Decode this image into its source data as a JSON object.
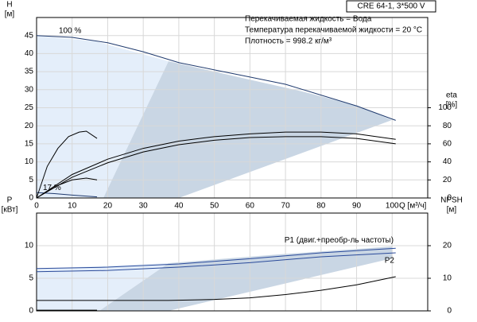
{
  "chart_data": [
    {
      "type": "line",
      "title": "CRE 64-1, 3*500 V",
      "ylabel": [
        "H",
        "[м]"
      ],
      "y2label": [
        "eta",
        "[%]"
      ],
      "xlabel": "Q [м³/ч]",
      "annotations": [
        "Перекачиваемая жидкость = Вода",
        "Температура перекачиваемой жидкости = 20 °C",
        "Плотность = 998.2 кг/м³"
      ],
      "xlim": [
        0,
        110
      ],
      "xticks": [
        0,
        10,
        20,
        30,
        40,
        50,
        60,
        70,
        80,
        90,
        100
      ],
      "ylim": [
        0,
        50
      ],
      "yticks": [
        0,
        5,
        10,
        15,
        20,
        25,
        30,
        35,
        40,
        45
      ],
      "y2lim": [
        0,
        200
      ],
      "y2ticks": [
        0,
        20,
        40,
        60,
        80,
        100
      ],
      "grid": true,
      "series": [
        {
          "name": "100 %",
          "color": "#1f3a6e",
          "x": [
            0,
            10,
            20,
            30,
            40,
            50,
            60,
            70,
            80,
            90,
            101
          ],
          "values": [
            45,
            44.5,
            43,
            40.5,
            37.5,
            35.5,
            33.5,
            31.5,
            28.5,
            25.5,
            21.5
          ]
        },
        {
          "name": "17 %",
          "color": "#1f3a6e",
          "x": [
            0,
            5,
            10,
            17
          ],
          "values": [
            1.5,
            1.2,
            0.8,
            0.3
          ]
        },
        {
          "color": "#000000",
          "axis": "y2",
          "x": [
            0,
            10,
            20,
            30,
            40,
            50,
            60,
            70,
            80,
            90,
            101
          ],
          "values": [
            0,
            26,
            43,
            55,
            63,
            68,
            71,
            73,
            73,
            71,
            65
          ]
        },
        {
          "color": "#000000",
          "axis": "y2",
          "x": [
            0,
            10,
            20,
            30,
            40,
            50,
            60,
            70,
            80,
            90,
            101
          ],
          "values": [
            0,
            23,
            39,
            51,
            59,
            64,
            67,
            68,
            68,
            66,
            60
          ]
        },
        {
          "color": "#000000",
          "axis": "y2",
          "x": [
            0,
            3,
            6,
            9,
            12,
            14,
            17
          ],
          "values": [
            0,
            35,
            55,
            68,
            73,
            74,
            66
          ]
        },
        {
          "color": "#000000",
          "axis": "y2",
          "x": [
            2,
            6,
            10,
            14,
            17
          ],
          "values": [
            5,
            14,
            20,
            22,
            20
          ]
        }
      ]
    },
    {
      "type": "line",
      "ylabel": [
        "P",
        "[кВт]"
      ],
      "y2label": [
        "NPSH",
        "[м]"
      ],
      "xlim": [
        0,
        110
      ],
      "xticks": [
        0,
        10,
        20,
        30,
        40,
        50,
        60,
        70,
        80,
        90,
        100
      ],
      "ylim": [
        0,
        15
      ],
      "yticks": [
        0,
        5,
        10
      ],
      "y2lim": [
        0,
        30
      ],
      "y2ticks": [
        0,
        10,
        20
      ],
      "grid": true,
      "series": [
        {
          "name": "P1 (двиг.+преобр-ль частоты)",
          "color": "#2a4a9a",
          "x": [
            0,
            20,
            40,
            60,
            80,
            101
          ],
          "values": [
            6.5,
            6.7,
            7.2,
            8.0,
            8.9,
            9.6
          ]
        },
        {
          "name": "P2",
          "color": "#2a4a9a",
          "x": [
            0,
            20,
            40,
            60,
            80,
            101
          ],
          "values": [
            6.0,
            6.2,
            6.7,
            7.4,
            8.3,
            8.9
          ]
        },
        {
          "color": "#000000",
          "axis": "y2",
          "x": [
            0,
            37,
            50,
            60,
            70,
            80,
            90,
            101
          ],
          "values": [
            3.2,
            3.2,
            3.5,
            4,
            5,
            6.3,
            8,
            10.5
          ]
        },
        {
          "color": "#000000",
          "x": [
            0,
            17
          ],
          "values": [
            0.1,
            0.1
          ]
        }
      ]
    }
  ]
}
